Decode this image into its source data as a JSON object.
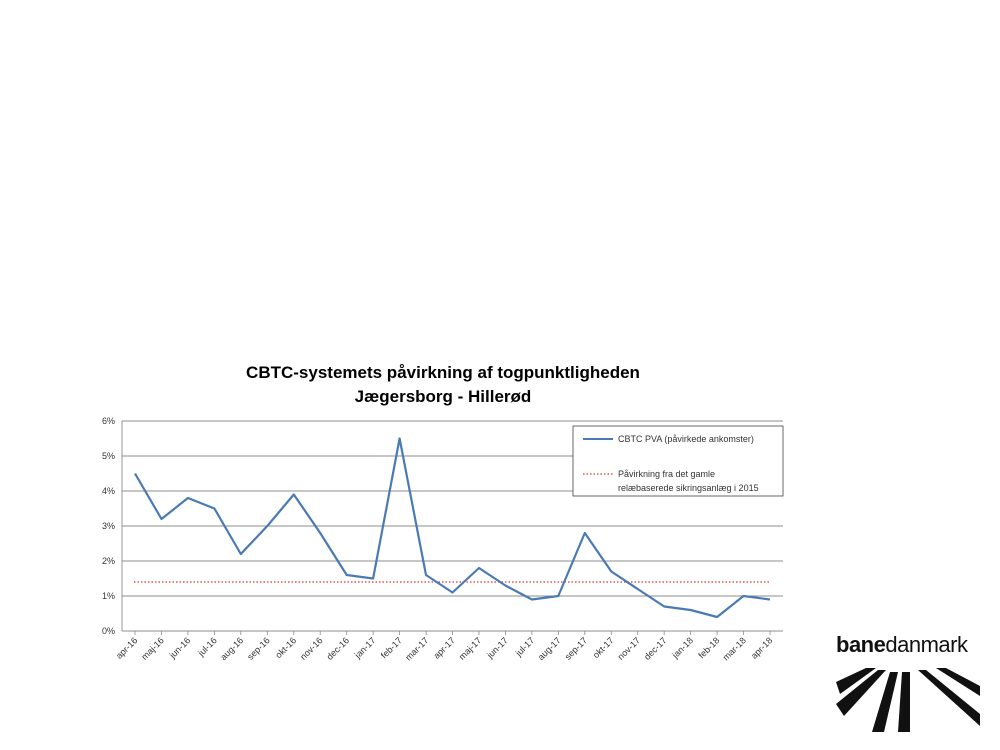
{
  "chart_data": {
    "type": "line",
    "title_line1": "CBTC-systemets påvirkning af togpunktligheden",
    "title_line2": "Jægersborg - Hillerød",
    "categories": [
      "apr-16",
      "maj-16",
      "jun-16",
      "jul-16",
      "aug-16",
      "sep-16",
      "okt-16",
      "nov-16",
      "dec-16",
      "jan-17",
      "feb-17",
      "mar-17",
      "apr-17",
      "maj-17",
      "jun-17",
      "jul-17",
      "aug-17",
      "sep-17",
      "okt-17",
      "nov-17",
      "dec-17",
      "jan-18",
      "feb-18",
      "mar-18",
      "apr-18"
    ],
    "ylim": [
      0,
      6
    ],
    "yticks": [
      "0%",
      "1%",
      "2%",
      "3%",
      "4%",
      "5%",
      "6%"
    ],
    "grid": true,
    "legend_position": "top-right",
    "series": [
      {
        "name": "CBTC PVA (påvirkede ankomster)",
        "color": "#4a7ab5",
        "style": "solid",
        "values": [
          4.5,
          3.2,
          3.8,
          3.5,
          2.2,
          3.0,
          3.9,
          2.8,
          1.6,
          1.5,
          5.5,
          1.6,
          1.1,
          1.8,
          1.3,
          0.9,
          1.0,
          2.8,
          1.7,
          1.2,
          0.7,
          0.6,
          0.4,
          1.0,
          0.9
        ]
      },
      {
        "name_line1": "Påvirkning fra det gamle",
        "name_line2": "relæbaserede sikringsanlæg i 2015",
        "color": "#e03030",
        "style": "dotted",
        "constant": 1.4
      }
    ]
  },
  "logo": {
    "bold_part": "bane",
    "light_part": "danmark"
  }
}
